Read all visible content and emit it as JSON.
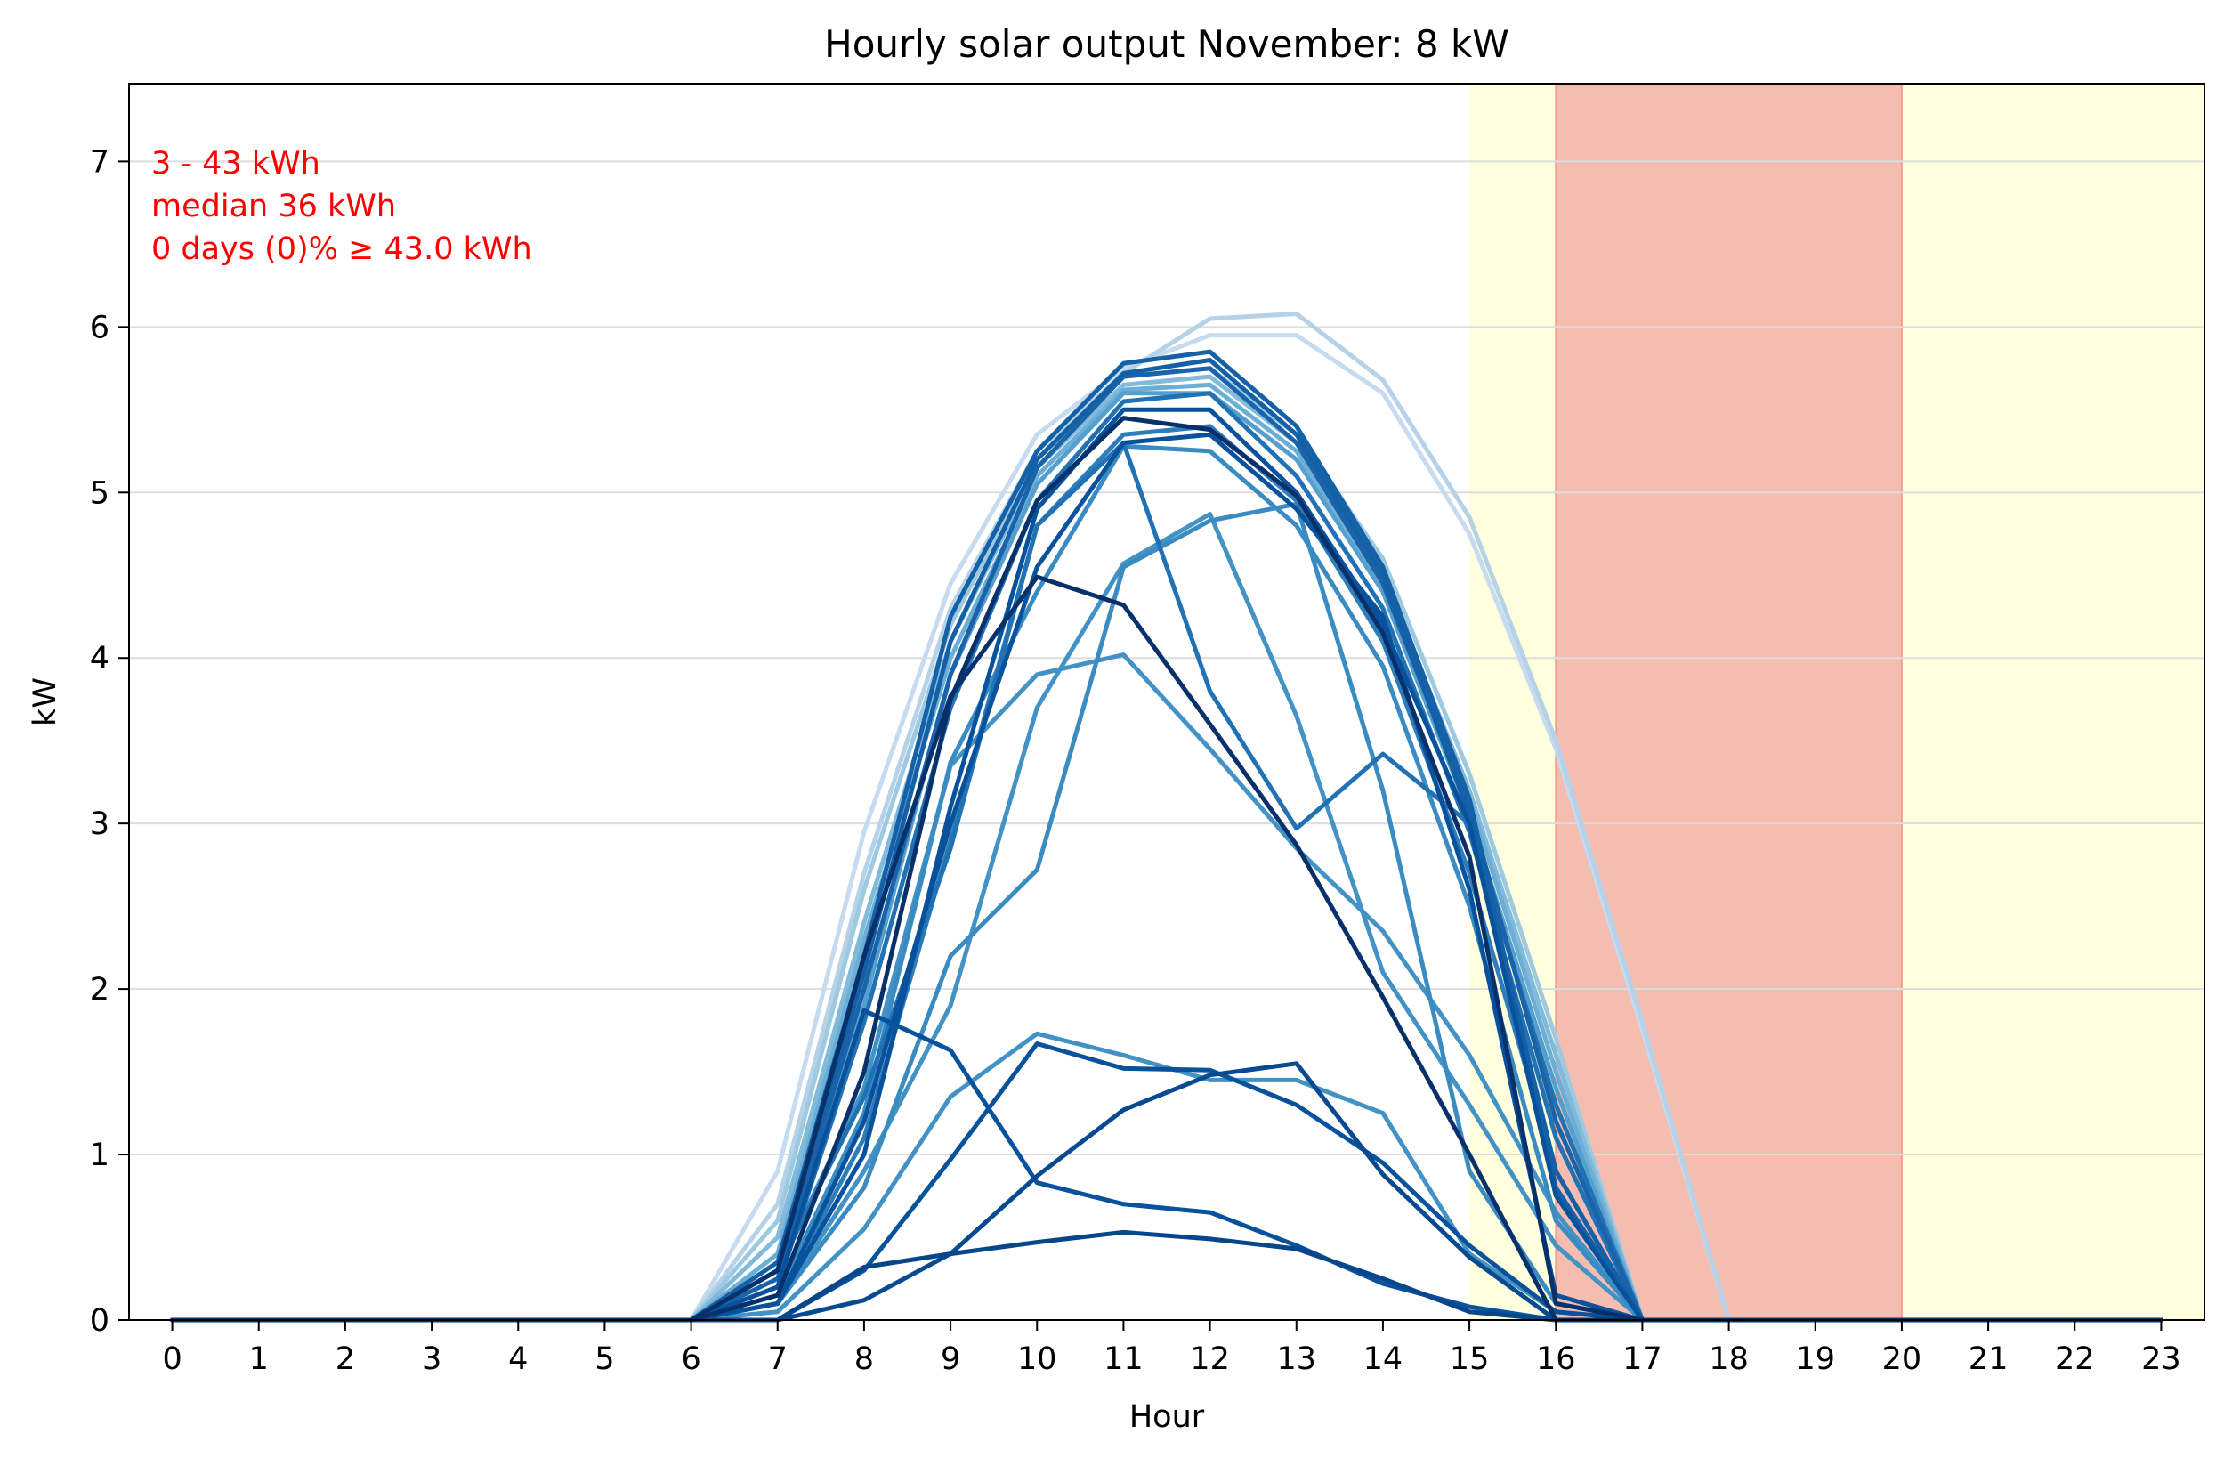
{
  "chart_data": {
    "type": "line",
    "title": "Hourly solar output November:  8 kW",
    "xlabel": "Hour",
    "ylabel": "kW",
    "xlim": [
      -0.5,
      23.5
    ],
    "ylim": [
      0,
      7.47
    ],
    "x": [
      0,
      1,
      2,
      3,
      4,
      5,
      6,
      7,
      8,
      9,
      10,
      11,
      12,
      13,
      14,
      15,
      16,
      17,
      18,
      19,
      20,
      21,
      22,
      23
    ],
    "x_ticks": [
      "0",
      "1",
      "2",
      "3",
      "4",
      "5",
      "6",
      "7",
      "8",
      "9",
      "10",
      "11",
      "12",
      "13",
      "14",
      "15",
      "16",
      "17",
      "18",
      "19",
      "20",
      "21",
      "22",
      "23"
    ],
    "y_ticks": [
      "0",
      "1",
      "2",
      "3",
      "4",
      "5",
      "6",
      "7"
    ],
    "grid": "horizontal",
    "annotations": [
      "3 - 43 kWh",
      "median  36 kWh",
      "0 days (0)% ≥ 43.0 kWh"
    ],
    "shaded_regions": [
      {
        "from": 15,
        "to": 16,
        "color": "#ffffdd"
      },
      {
        "from": 16,
        "to": 20,
        "color": "#f5bdb0"
      },
      {
        "from": 20,
        "to": 23.5,
        "color": "#ffffdd"
      }
    ],
    "series": [
      {
        "color": "#c6dbef",
        "values": [
          0,
          0,
          0,
          0,
          0,
          0,
          0,
          0.9,
          2.95,
          4.45,
          5.35,
          5.75,
          5.95,
          5.95,
          5.6,
          4.75,
          3.45,
          1.75,
          0,
          0,
          0,
          0,
          0,
          0
        ]
      },
      {
        "color": "#b5d2e8",
        "values": [
          0,
          0,
          0,
          0,
          0,
          0,
          0,
          0.7,
          2.7,
          4.3,
          5.25,
          5.72,
          6.05,
          6.08,
          5.68,
          4.85,
          3.5,
          1.8,
          0,
          0,
          0,
          0,
          0,
          0
        ]
      },
      {
        "color": "#9ecae1",
        "values": [
          0,
          0,
          0,
          0,
          0,
          0,
          0,
          0.6,
          2.6,
          4.2,
          5.2,
          5.7,
          5.75,
          5.35,
          4.6,
          3.3,
          1.7,
          0,
          0,
          0,
          0,
          0,
          0,
          0
        ]
      },
      {
        "color": "#82badb",
        "values": [
          0,
          0,
          0,
          0,
          0,
          0,
          0,
          0.5,
          2.4,
          4.1,
          5.15,
          5.65,
          5.7,
          5.3,
          4.5,
          3.2,
          1.6,
          0,
          0,
          0,
          0,
          0,
          0,
          0
        ]
      },
      {
        "color": "#6baed6",
        "values": [
          0,
          0,
          0,
          0,
          0,
          0,
          0,
          0.4,
          2.3,
          4.0,
          5.1,
          5.62,
          5.65,
          5.25,
          4.45,
          3.15,
          1.5,
          0,
          0,
          0,
          0,
          0,
          0,
          0
        ]
      },
      {
        "color": "#549fcd",
        "values": [
          0,
          0,
          0,
          0,
          0,
          0,
          0,
          0.3,
          1.9,
          3.9,
          5.05,
          5.6,
          5.6,
          5.2,
          4.4,
          3.05,
          1.4,
          0,
          0,
          0,
          0,
          0,
          0,
          0
        ]
      },
      {
        "color": "#4292c6",
        "values": [
          0,
          0,
          0,
          0,
          0,
          0,
          0,
          0.3,
          1.4,
          3.35,
          3.9,
          4.02,
          3.45,
          2.85,
          2.35,
          1.6,
          0.65,
          0,
          0,
          0,
          0,
          0,
          0,
          0
        ]
      },
      {
        "color": "#4292c6",
        "values": [
          0,
          0,
          0,
          0,
          0,
          0,
          0,
          0.1,
          0.9,
          1.9,
          3.7,
          4.57,
          4.87,
          3.65,
          2.1,
          1.3,
          0.45,
          0,
          0,
          0,
          0,
          0,
          0,
          0
        ]
      },
      {
        "color": "#4292c6",
        "values": [
          0,
          0,
          0,
          0,
          0,
          0,
          0,
          0.05,
          0.55,
          1.35,
          1.73,
          1.6,
          1.45,
          1.45,
          1.25,
          0.4,
          0.05,
          0,
          0,
          0,
          0,
          0,
          0,
          0
        ]
      },
      {
        "color": "#3a8bc2",
        "values": [
          0,
          0,
          0,
          0,
          0,
          0,
          0,
          0.1,
          0.8,
          2.2,
          2.72,
          4.55,
          4.83,
          4.93,
          3.2,
          0.9,
          0.1,
          0,
          0,
          0,
          0,
          0,
          0,
          0
        ]
      },
      {
        "color": "#3a8bc2",
        "values": [
          0,
          0,
          0,
          0,
          0,
          0,
          0,
          0.15,
          1.25,
          3.37,
          4.4,
          5.28,
          5.25,
          4.8,
          3.95,
          2.5,
          0.6,
          0,
          0,
          0,
          0,
          0,
          0,
          0
        ]
      },
      {
        "color": "#2d7dbb",
        "values": [
          0,
          0,
          0,
          0,
          0,
          0,
          0,
          0.1,
          1.1,
          2.9,
          4.8,
          5.35,
          5.4,
          4.95,
          4.1,
          2.7,
          0.9,
          0,
          0,
          0,
          0,
          0,
          0,
          0
        ]
      },
      {
        "color": "#2171b5",
        "values": [
          0,
          0,
          0,
          0,
          0,
          0,
          0,
          0.2,
          1.8,
          3.7,
          4.95,
          5.55,
          5.6,
          5.1,
          4.3,
          2.95,
          1.1,
          0,
          0,
          0,
          0,
          0,
          0,
          0
        ]
      },
      {
        "color": "#2171b5",
        "values": [
          0,
          0,
          0,
          0,
          0,
          0,
          0,
          0.3,
          1.35,
          2.85,
          4.8,
          5.3,
          3.8,
          2.97,
          3.42,
          3.0,
          1.3,
          0,
          0,
          0,
          0,
          0,
          0,
          0
        ]
      },
      {
        "color": "#1a63ab",
        "values": [
          0,
          0,
          0,
          0,
          0,
          0,
          0,
          0.25,
          2.0,
          3.9,
          5.15,
          5.7,
          5.75,
          5.3,
          4.45,
          3.1,
          1.2,
          0,
          0,
          0,
          0,
          0,
          0,
          0
        ]
      },
      {
        "color": "#1461a8",
        "values": [
          0,
          0,
          0,
          0,
          0,
          0,
          0,
          0.35,
          2.2,
          4.25,
          5.25,
          5.78,
          5.85,
          5.4,
          4.55,
          3.15,
          0.8,
          0,
          0,
          0,
          0,
          0,
          0,
          0
        ]
      },
      {
        "color": "#1460a6",
        "values": [
          0,
          0,
          0,
          0,
          0,
          0,
          0,
          0.3,
          2.1,
          4.1,
          5.2,
          5.72,
          5.8,
          5.35,
          4.5,
          3.05,
          0.9,
          0,
          0,
          0,
          0,
          0,
          0,
          0
        ]
      },
      {
        "color": "#08519c",
        "values": [
          0,
          0,
          0,
          0,
          0,
          0,
          0,
          0.1,
          1.0,
          3.1,
          4.9,
          5.5,
          5.5,
          5.0,
          4.2,
          3.0,
          0.75,
          0,
          0,
          0,
          0,
          0,
          0,
          0
        ]
      },
      {
        "color": "#08519c",
        "values": [
          0,
          0,
          0,
          0,
          0,
          0,
          0,
          0.1,
          1.2,
          3.0,
          4.55,
          5.3,
          5.35,
          4.9,
          4.25,
          2.6,
          0.15,
          0,
          0,
          0,
          0,
          0,
          0,
          0
        ]
      },
      {
        "color": "#08519c",
        "values": [
          0,
          0,
          0,
          0,
          0,
          0,
          0,
          0.2,
          1.87,
          1.63,
          0.83,
          0.7,
          0.65,
          0.45,
          0.22,
          0.08,
          0,
          0,
          0,
          0,
          0,
          0,
          0,
          0
        ]
      },
      {
        "color": "#08519c",
        "values": [
          0,
          0,
          0,
          0,
          0,
          0,
          0,
          0,
          0.3,
          0.97,
          1.67,
          1.52,
          1.51,
          1.3,
          0.95,
          0.45,
          0.05,
          0,
          0,
          0,
          0,
          0,
          0,
          0
        ]
      },
      {
        "color": "#084a92",
        "values": [
          0,
          0,
          0,
          0,
          0,
          0,
          0,
          0,
          0.12,
          0.4,
          0.87,
          1.27,
          1.48,
          1.55,
          0.88,
          0.38,
          0,
          0,
          0,
          0,
          0,
          0,
          0,
          0
        ]
      },
      {
        "color": "#08468b",
        "values": [
          0,
          0,
          0,
          0,
          0,
          0,
          0,
          0,
          0.32,
          0.4,
          0.47,
          0.53,
          0.49,
          0.43,
          0.25,
          0.05,
          0,
          0,
          0,
          0,
          0,
          0,
          0,
          0
        ]
      },
      {
        "color": "#08306b",
        "values": [
          0,
          0,
          0,
          0,
          0,
          0,
          0,
          0.3,
          2.2,
          3.77,
          4.49,
          4.32,
          3.6,
          2.87,
          1.95,
          1.0,
          0,
          0,
          0,
          0,
          0,
          0,
          0,
          0
        ]
      },
      {
        "color": "#08306b",
        "values": [
          0,
          0,
          0,
          0,
          0,
          0,
          0,
          0.15,
          1.5,
          3.75,
          4.95,
          5.45,
          5.38,
          4.98,
          4.15,
          2.8,
          0.1,
          0,
          0,
          0,
          0,
          0,
          0,
          0
        ]
      }
    ]
  }
}
